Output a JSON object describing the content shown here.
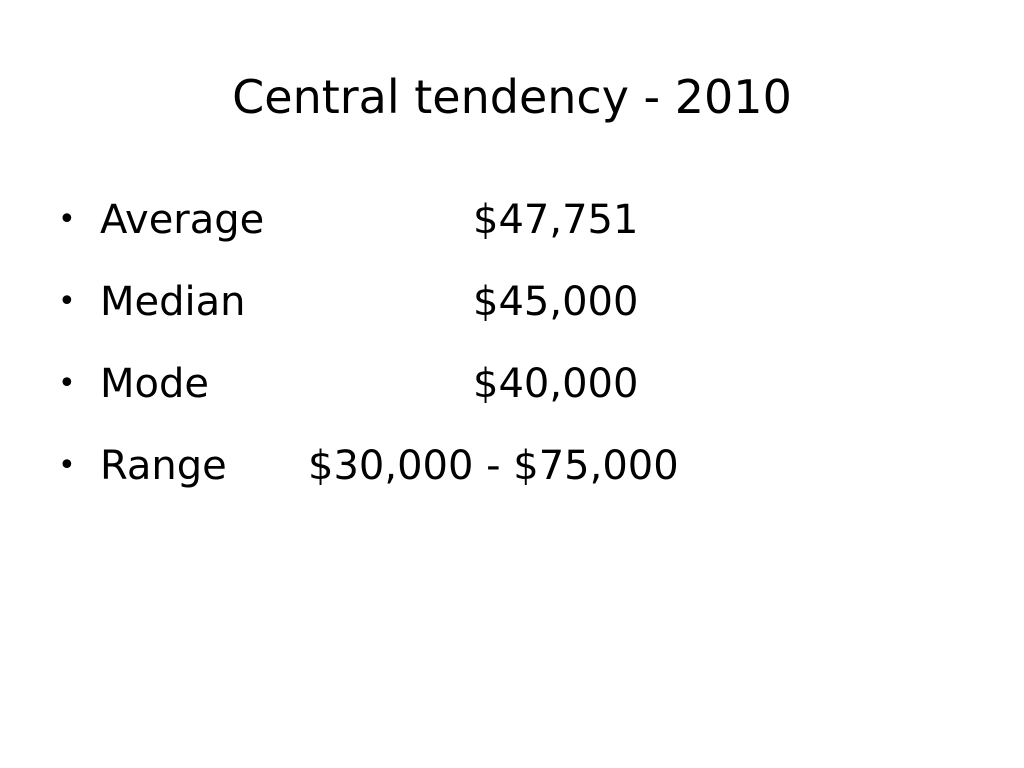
{
  "slide": {
    "title": "Central tendency - 2010",
    "bullets": [
      {
        "label": "Average",
        "value": "$47,751"
      },
      {
        "label": "Median",
        "value": "$45,000"
      },
      {
        "label": "Mode",
        "value": "$40,000"
      },
      {
        "label": "Range",
        "value": "$30,000 - $75,000"
      }
    ]
  }
}
